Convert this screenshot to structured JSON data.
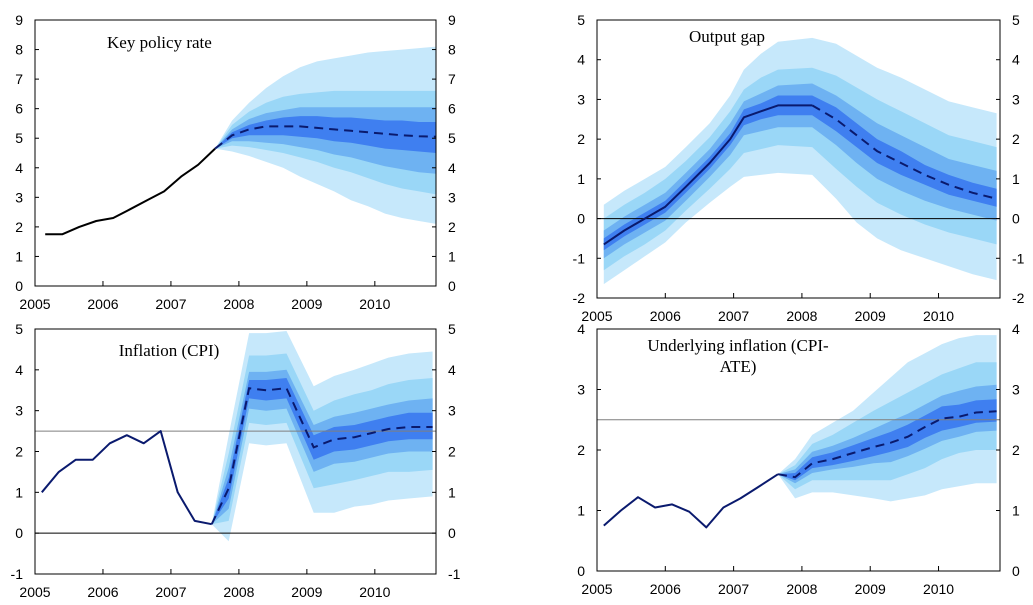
{
  "colors": {
    "band_outer": "#c6e8fb",
    "band_mid2": "#9ad7f7",
    "band_mid1": "#6eb2f2",
    "band_inner": "#3f7ff0",
    "line": "#0a1a6e",
    "history_black": "#000000",
    "reference": "#7f7f7f",
    "frame": "#000000"
  },
  "chart_data": [
    {
      "type": "line",
      "title": "Key policy rate",
      "xlim": [
        2005.0,
        2010.9
      ],
      "ylim": [
        0,
        9
      ],
      "yticks": [
        "0",
        "1",
        "2",
        "3",
        "4",
        "5",
        "6",
        "7",
        "8",
        "9"
      ],
      "xticks": [
        "2005",
        "2006",
        "2007",
        "2008",
        "2009",
        "2010"
      ],
      "reference_line": null,
      "history_color": "history_black",
      "history": {
        "x": [
          2005.15,
          2005.4,
          2005.65,
          2005.9,
          2006.15,
          2006.4,
          2006.65,
          2006.9,
          2007.15,
          2007.4,
          2007.65
        ],
        "y": [
          1.75,
          1.75,
          2.0,
          2.2,
          2.3,
          2.6,
          2.9,
          3.2,
          3.7,
          4.1,
          4.65
        ]
      },
      "forecast": {
        "x": [
          2007.65,
          2007.9,
          2008.15,
          2008.4,
          2008.65,
          2008.9,
          2009.15,
          2009.4,
          2009.65,
          2009.9,
          2010.15,
          2010.4,
          2010.65,
          2010.9
        ],
        "y": [
          4.65,
          5.1,
          5.3,
          5.4,
          5.4,
          5.4,
          5.35,
          5.3,
          5.25,
          5.2,
          5.15,
          5.1,
          5.07,
          5.05
        ],
        "bands": [
          {
            "lower": [
              4.65,
              4.55,
              4.4,
              4.2,
              4.0,
              3.7,
              3.45,
              3.2,
              2.9,
              2.7,
              2.45,
              2.3,
              2.2,
              2.1
            ],
            "upper": [
              4.65,
              5.6,
              6.2,
              6.7,
              7.1,
              7.4,
              7.6,
              7.7,
              7.8,
              7.9,
              7.95,
              8.0,
              8.05,
              8.1
            ]
          },
          {
            "lower": [
              4.65,
              4.75,
              4.7,
              4.6,
              4.5,
              4.35,
              4.2,
              4.0,
              3.85,
              3.65,
              3.45,
              3.3,
              3.2,
              3.1
            ],
            "upper": [
              4.65,
              5.45,
              5.9,
              6.2,
              6.4,
              6.5,
              6.55,
              6.6,
              6.6,
              6.6,
              6.6,
              6.6,
              6.6,
              6.6
            ]
          },
          {
            "lower": [
              4.65,
              4.9,
              4.9,
              4.85,
              4.8,
              4.7,
              4.6,
              4.45,
              4.35,
              4.2,
              4.05,
              3.95,
              3.85,
              3.8
            ],
            "upper": [
              4.65,
              5.3,
              5.65,
              5.85,
              5.95,
              6.05,
              6.05,
              6.05,
              6.05,
              6.05,
              6.05,
              6.05,
              6.05,
              6.05
            ]
          },
          {
            "lower": [
              4.65,
              5.0,
              5.1,
              5.1,
              5.1,
              5.05,
              5.0,
              4.9,
              4.85,
              4.75,
              4.65,
              4.6,
              4.55,
              4.5
            ],
            "upper": [
              4.65,
              5.2,
              5.45,
              5.6,
              5.7,
              5.75,
              5.75,
              5.7,
              5.7,
              5.65,
              5.6,
              5.6,
              5.55,
              5.55
            ]
          }
        ]
      }
    },
    {
      "type": "line",
      "title": "Output gap",
      "xlim": [
        2005.0,
        2010.9
      ],
      "ylim": [
        -2,
        5
      ],
      "yticks": [
        "-2",
        "-1",
        "0",
        "1",
        "2",
        "3",
        "4",
        "5"
      ],
      "xticks": [
        "2005",
        "2006",
        "2007",
        "2008",
        "2009",
        "2010"
      ],
      "reference_line": 0,
      "reference_color": "frame",
      "history_color": "line",
      "history": null,
      "forecast": {
        "x": [
          2005.1,
          2005.4,
          2005.7,
          2006.0,
          2006.3,
          2006.65,
          2006.95,
          2007.15,
          2007.4,
          2007.65,
          2008.15,
          2008.5,
          2008.8,
          2009.1,
          2009.45,
          2009.8,
          2010.15,
          2010.5,
          2010.85
        ],
        "y": [
          -0.65,
          -0.3,
          0.0,
          0.3,
          0.8,
          1.4,
          2.0,
          2.55,
          2.7,
          2.85,
          2.85,
          2.5,
          2.1,
          1.7,
          1.4,
          1.1,
          0.85,
          0.65,
          0.5
        ],
        "bands": [
          {
            "lower": [
              -1.65,
              -1.3,
              -0.95,
              -0.6,
              -0.1,
              0.4,
              0.8,
              1.05,
              1.1,
              1.15,
              1.1,
              0.5,
              -0.1,
              -0.5,
              -0.8,
              -1.0,
              -1.2,
              -1.4,
              -1.55
            ],
            "upper": [
              0.35,
              0.7,
              1.0,
              1.3,
              1.8,
              2.4,
              3.1,
              3.75,
              4.15,
              4.45,
              4.55,
              4.4,
              4.1,
              3.8,
              3.55,
              3.25,
              2.95,
              2.8,
              2.65
            ]
          },
          {
            "lower": [
              -1.3,
              -0.95,
              -0.65,
              -0.3,
              0.2,
              0.75,
              1.25,
              1.65,
              1.75,
              1.85,
              1.8,
              1.25,
              0.8,
              0.4,
              0.1,
              -0.15,
              -0.35,
              -0.5,
              -0.65
            ],
            "upper": [
              0.0,
              0.35,
              0.65,
              1.0,
              1.45,
              2.05,
              2.7,
              3.25,
              3.55,
              3.75,
              3.8,
              3.6,
              3.3,
              3.0,
              2.7,
              2.4,
              2.1,
              1.95,
              1.8
            ]
          },
          {
            "lower": [
              -1.0,
              -0.65,
              -0.35,
              -0.05,
              0.45,
              1.05,
              1.6,
              2.1,
              2.2,
              2.3,
              2.3,
              1.85,
              1.4,
              1.0,
              0.7,
              0.45,
              0.25,
              0.1,
              -0.05
            ],
            "upper": [
              -0.3,
              0.05,
              0.35,
              0.65,
              1.15,
              1.75,
              2.4,
              2.95,
              3.15,
              3.35,
              3.4,
              3.1,
              2.75,
              2.4,
              2.1,
              1.8,
              1.5,
              1.35,
              1.2
            ]
          },
          {
            "lower": [
              -0.8,
              -0.45,
              -0.15,
              0.15,
              0.65,
              1.25,
              1.85,
              2.35,
              2.5,
              2.6,
              2.6,
              2.2,
              1.8,
              1.4,
              1.1,
              0.85,
              0.6,
              0.45,
              0.3
            ],
            "upper": [
              -0.5,
              -0.15,
              0.15,
              0.45,
              0.95,
              1.55,
              2.15,
              2.75,
              2.9,
              3.1,
              3.1,
              2.8,
              2.4,
              2.0,
              1.7,
              1.35,
              1.1,
              0.9,
              0.75
            ]
          }
        ]
      }
    },
    {
      "type": "line",
      "title": "Inflation (CPI)",
      "xlim": [
        2005.0,
        2010.9
      ],
      "ylim": [
        -1,
        5
      ],
      "yticks": [
        "-1",
        "0",
        "1",
        "2",
        "3",
        "4",
        "5"
      ],
      "xticks": [
        "2005",
        "2006",
        "2007",
        "2008",
        "2009",
        "2010"
      ],
      "reference_line": 2.5,
      "reference_color": "reference",
      "zero_line": 0,
      "history_color": "line",
      "history": {
        "x": [
          2005.1,
          2005.35,
          2005.6,
          2005.85,
          2006.1,
          2006.35,
          2006.6,
          2006.85,
          2007.1,
          2007.35,
          2007.6
        ],
        "y": [
          1.0,
          1.5,
          1.8,
          1.8,
          2.2,
          2.4,
          2.2,
          2.5,
          1.0,
          0.3,
          0.22
        ]
      },
      "forecast": {
        "x": [
          2007.6,
          2007.85,
          2008.15,
          2008.4,
          2008.7,
          2009.1,
          2009.4,
          2009.7,
          2009.95,
          2010.2,
          2010.5,
          2010.85
        ],
        "y": [
          0.22,
          1.1,
          3.55,
          3.5,
          3.55,
          2.1,
          2.3,
          2.35,
          2.45,
          2.55,
          2.6,
          2.6
        ],
        "bands": [
          {
            "lower": [
              0.22,
              -0.2,
              2.2,
              2.15,
              2.2,
              0.5,
              0.5,
              0.65,
              0.7,
              0.8,
              0.85,
              0.9
            ],
            "upper": [
              0.22,
              2.4,
              4.9,
              4.9,
              4.95,
              3.6,
              3.85,
              4.0,
              4.15,
              4.3,
              4.4,
              4.45
            ]
          },
          {
            "lower": [
              0.22,
              0.3,
              2.7,
              2.65,
              2.7,
              1.1,
              1.2,
              1.3,
              1.4,
              1.5,
              1.5,
              1.55
            ],
            "upper": [
              0.22,
              1.95,
              4.35,
              4.35,
              4.4,
              3.0,
              3.25,
              3.4,
              3.5,
              3.65,
              3.75,
              3.8
            ]
          },
          {
            "lower": [
              0.22,
              0.6,
              3.05,
              3.0,
              3.05,
              1.5,
              1.7,
              1.75,
              1.85,
              1.95,
              2.0,
              2.0
            ],
            "upper": [
              0.22,
              1.6,
              3.95,
              3.95,
              4.0,
              2.65,
              2.85,
              2.95,
              3.05,
              3.15,
              3.25,
              3.3
            ]
          },
          {
            "lower": [
              0.22,
              0.85,
              3.3,
              3.25,
              3.3,
              1.8,
              2.0,
              2.05,
              2.15,
              2.25,
              2.3,
              2.3
            ],
            "upper": [
              0.22,
              1.35,
              3.75,
              3.75,
              3.8,
              2.4,
              2.6,
              2.65,
              2.75,
              2.85,
              2.95,
              2.95
            ]
          }
        ]
      }
    },
    {
      "type": "line",
      "title": "Underlying inflation (CPI-\nATE)",
      "xlim": [
        2005.0,
        2010.9
      ],
      "ylim": [
        0,
        4
      ],
      "yticks": [
        "0",
        "1",
        "2",
        "3",
        "4"
      ],
      "xticks": [
        "2005",
        "2006",
        "2007",
        "2008",
        "2009",
        "2010"
      ],
      "reference_line": 2.5,
      "reference_color": "reference",
      "history_color": "line",
      "history": {
        "x": [
          2005.1,
          2005.35,
          2005.6,
          2005.85,
          2006.1,
          2006.35,
          2006.6,
          2006.85,
          2007.1,
          2007.35,
          2007.65
        ],
        "y": [
          0.75,
          1.0,
          1.22,
          1.05,
          1.1,
          0.98,
          0.72,
          1.05,
          1.2,
          1.38,
          1.6
        ]
      },
      "forecast": {
        "x": [
          2007.65,
          2007.9,
          2008.15,
          2008.45,
          2008.75,
          2009.05,
          2009.3,
          2009.55,
          2009.8,
          2010.05,
          2010.3,
          2010.55,
          2010.85
        ],
        "y": [
          1.6,
          1.55,
          1.78,
          1.85,
          1.95,
          2.05,
          2.12,
          2.22,
          2.38,
          2.52,
          2.55,
          2.62,
          2.64
        ],
        "bands": [
          {
            "lower": [
              1.6,
              1.2,
              1.3,
              1.3,
              1.25,
              1.2,
              1.15,
              1.2,
              1.25,
              1.35,
              1.4,
              1.45,
              1.45
            ],
            "upper": [
              1.6,
              1.85,
              2.25,
              2.45,
              2.65,
              2.95,
              3.2,
              3.45,
              3.6,
              3.75,
              3.85,
              3.9,
              3.9
            ]
          },
          {
            "lower": [
              1.6,
              1.35,
              1.5,
              1.5,
              1.5,
              1.5,
              1.5,
              1.6,
              1.7,
              1.85,
              1.95,
              2.0,
              2.0
            ],
            "upper": [
              1.6,
              1.75,
              2.1,
              2.25,
              2.45,
              2.65,
              2.8,
              2.95,
              3.1,
              3.25,
              3.35,
              3.45,
              3.45
            ]
          },
          {
            "lower": [
              1.6,
              1.45,
              1.62,
              1.68,
              1.72,
              1.78,
              1.8,
              1.9,
              2.02,
              2.15,
              2.22,
              2.3,
              2.32
            ],
            "upper": [
              1.6,
              1.68,
              1.97,
              2.07,
              2.2,
              2.35,
              2.48,
              2.6,
              2.75,
              2.9,
              2.98,
              3.05,
              3.08
            ]
          },
          {
            "lower": [
              1.6,
              1.5,
              1.7,
              1.75,
              1.82,
              1.9,
              1.97,
              2.05,
              2.2,
              2.32,
              2.38,
              2.45,
              2.47
            ],
            "upper": [
              1.6,
              1.62,
              1.88,
              1.96,
              2.08,
              2.2,
              2.3,
              2.42,
              2.57,
              2.72,
              2.75,
              2.82,
              2.84
            ]
          }
        ]
      }
    }
  ]
}
